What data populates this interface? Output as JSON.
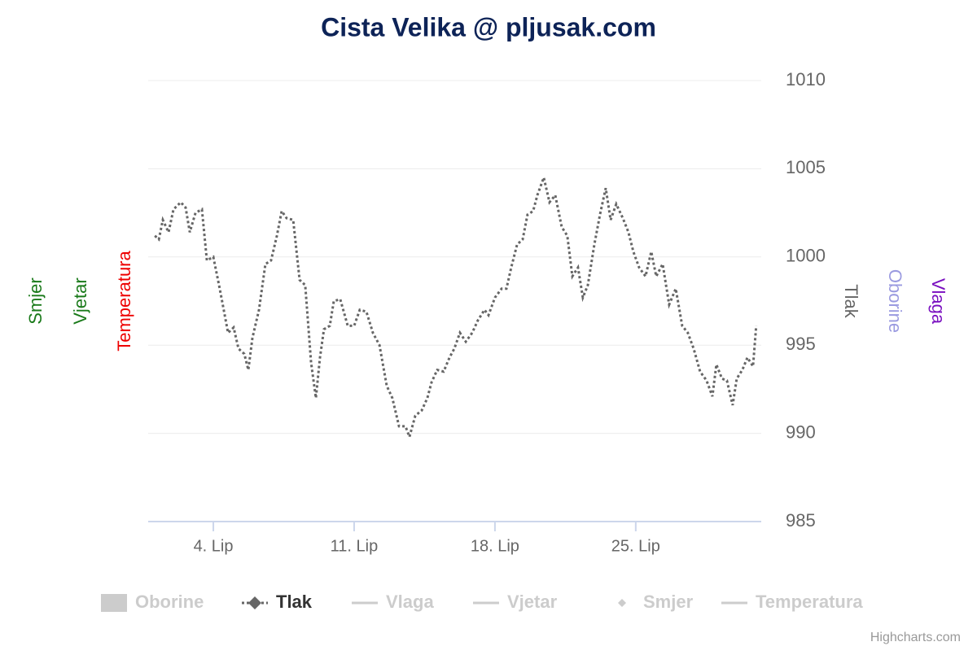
{
  "chart_data": {
    "type": "line",
    "title": "Cista Velika @ pljusak.com",
    "credits": "Highcharts.com",
    "x": [
      1.09,
      1.29,
      1.49,
      1.77,
      2.02,
      2.38,
      2.62,
      2.83,
      3.11,
      3.43,
      3.68,
      4.0,
      4.32,
      4.73,
      5.01,
      5.25,
      5.54,
      5.74,
      5.94,
      6.27,
      6.59,
      6.87,
      7.16,
      7.4,
      7.64,
      7.97,
      8.29,
      8.57,
      8.86,
      9.1,
      9.3,
      9.5,
      9.79,
      9.99,
      10.31,
      10.68,
      11.0,
      11.28,
      11.61,
      11.93,
      12.26,
      12.62,
      12.9,
      13.23,
      13.55,
      13.75,
      14.04,
      14.36,
      14.64,
      14.85,
      15.13,
      15.45,
      15.74,
      15.98,
      16.26,
      16.55,
      16.87,
      17.15,
      17.48,
      17.68,
      18.0,
      18.33,
      18.57,
      18.81,
      19.1,
      19.38,
      19.62,
      19.9,
      20.11,
      20.43,
      20.71,
      21.0,
      21.32,
      21.6,
      21.85,
      22.13,
      22.37,
      22.62,
      22.94,
      23.22,
      23.51,
      23.75,
      24.03,
      24.36,
      24.64,
      24.88,
      25.17,
      25.49,
      25.77,
      26.02,
      26.34,
      26.66,
      26.99,
      27.31,
      27.59,
      27.88,
      28.2,
      28.52,
      28.81,
      29.01,
      29.29,
      29.53,
      29.82,
      30.02,
      30.3,
      30.55,
      30.83,
      30.99
    ],
    "series": [
      {
        "name": "Oborine",
        "color": "#cccccc",
        "symbol": "area",
        "visible": false
      },
      {
        "name": "Tlak",
        "color": "#666666",
        "symbol": "line-diamond",
        "visible": true,
        "dash": "dot",
        "values": [
          1001.2,
          1001.0,
          1002.1,
          1001.4,
          1002.7,
          1003.1,
          1002.8,
          1001.4,
          1002.5,
          1002.7,
          999.8,
          1000.0,
          998.2,
          995.7,
          996.0,
          994.8,
          994.5,
          993.6,
          995.4,
          997.0,
          999.6,
          999.8,
          1001.2,
          1002.6,
          1002.2,
          1002.1,
          998.7,
          998.4,
          994.0,
          992.0,
          994.3,
          995.9,
          996.1,
          997.5,
          997.6,
          996.1,
          996.1,
          997.0,
          996.9,
          995.7,
          995.0,
          992.7,
          992.0,
          990.4,
          990.4,
          989.8,
          991.0,
          991.3,
          992.0,
          992.9,
          993.6,
          993.5,
          994.3,
          994.8,
          995.7,
          995.2,
          995.7,
          996.4,
          997.0,
          996.7,
          997.7,
          998.2,
          998.2,
          999.4,
          1000.7,
          1001.0,
          1002.4,
          1002.6,
          1003.5,
          1004.5,
          1003.1,
          1003.5,
          1001.7,
          1001.2,
          998.9,
          999.4,
          997.7,
          998.4,
          1000.7,
          1002.4,
          1003.9,
          1002.1,
          1003.0,
          1002.2,
          1001.4,
          1000.3,
          999.4,
          998.9,
          1000.3,
          998.9,
          999.6,
          997.3,
          998.2,
          996.1,
          995.7,
          994.8,
          993.5,
          993.0,
          992.1,
          993.9,
          993.1,
          993.0,
          991.6,
          993.1,
          993.6,
          994.3,
          993.8,
          996.1
        ]
      },
      {
        "name": "Vlaga",
        "color": "#cccccc",
        "symbol": "line",
        "visible": false
      },
      {
        "name": "Vjetar",
        "color": "#cccccc",
        "symbol": "line",
        "visible": false
      },
      {
        "name": "Smjer",
        "color": "#cccccc",
        "symbol": "diamond",
        "visible": false
      },
      {
        "name": "Temperatura",
        "color": "#cccccc",
        "symbol": "line",
        "visible": false
      }
    ],
    "left_axis_titles": [
      {
        "text": "Smjer",
        "color": "#1a7a1a"
      },
      {
        "text": "Vjetar",
        "color": "#1a7a1a"
      },
      {
        "text": "Temperatura",
        "color": "#ee0000"
      }
    ],
    "right_axis_titles": [
      {
        "text": "Tlak",
        "color": "#666666"
      },
      {
        "text": "Oborine",
        "color": "#9a9ae0"
      },
      {
        "text": "Vlaga",
        "color": "#7a10c0"
      }
    ],
    "xlim": [
      0.76,
      31.24
    ],
    "xticks": [
      {
        "value": 4,
        "label": "4. Lip"
      },
      {
        "value": 11,
        "label": "11. Lip"
      },
      {
        "value": 18,
        "label": "18. Lip"
      },
      {
        "value": 25,
        "label": "25. Lip"
      }
    ],
    "ylim": [
      985,
      1010
    ],
    "yticks": [
      985,
      990,
      995,
      1000,
      1005,
      1010
    ],
    "grid": true
  }
}
